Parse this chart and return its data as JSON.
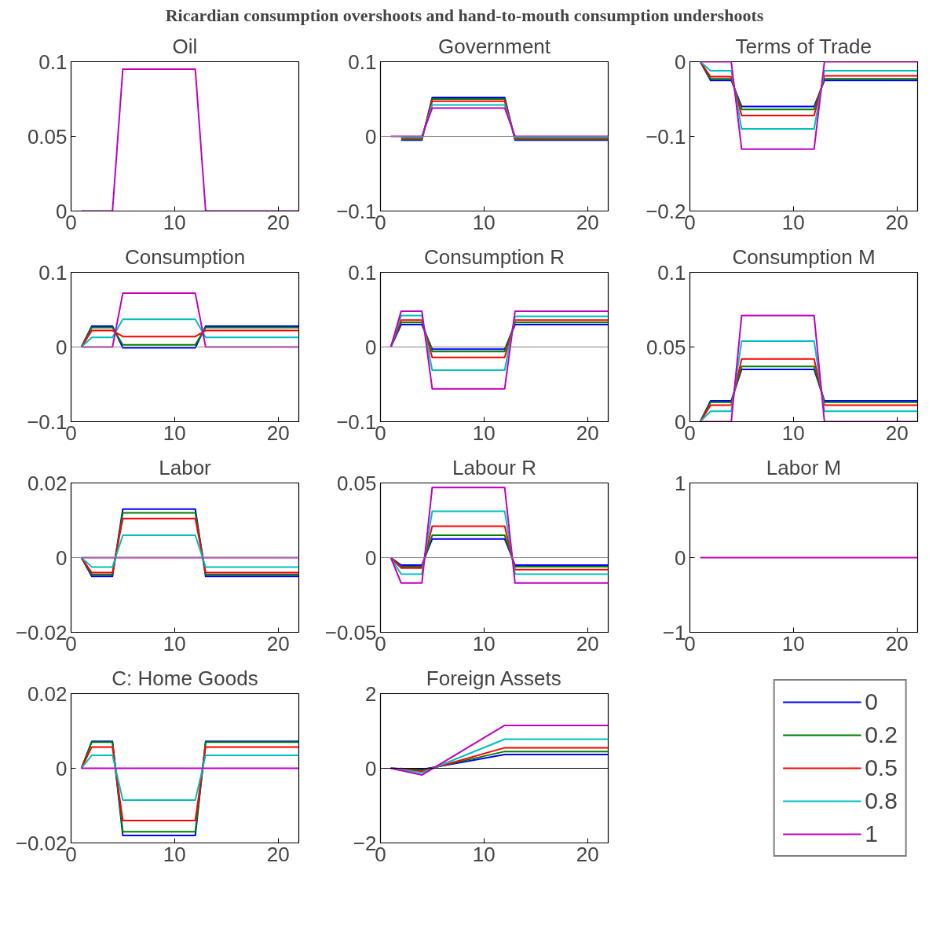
{
  "chart_data": [
    {
      "type": "other",
      "title": "Ricardian consumption overshoots and hand-to-mouth consumption undershoots"
    },
    {
      "type": "line",
      "title": "Oil",
      "x": [
        1,
        2,
        4,
        5,
        12,
        13,
        22
      ],
      "xlim": [
        0,
        22
      ],
      "xticks": [
        0,
        10,
        20
      ],
      "ylim": [
        0,
        0.1
      ],
      "yticks": [
        0,
        0.05,
        0.1
      ],
      "series": [
        {
          "color": "#0000ff",
          "values": [
            null,
            null,
            null,
            null,
            null,
            null,
            null
          ]
        },
        {
          "color": "#008000",
          "values": [
            null,
            null,
            null,
            null,
            null,
            null,
            null
          ]
        },
        {
          "color": "#ff0000",
          "values": [
            null,
            null,
            null,
            null,
            null,
            null,
            null
          ]
        },
        {
          "color": "#00bfbf",
          "values": [
            null,
            null,
            null,
            null,
            null,
            null,
            null
          ]
        },
        {
          "color": "#bf00bf",
          "values": [
            0,
            0,
            0,
            0.095,
            0.095,
            0,
            0
          ]
        }
      ]
    },
    {
      "type": "line",
      "title": "Government",
      "x": [
        1,
        2,
        4,
        5,
        12,
        13,
        22
      ],
      "xlim": [
        0,
        22
      ],
      "xticks": [
        0,
        10,
        20
      ],
      "ylim": [
        -0.1,
        0.1
      ],
      "yticks": [
        {
          "value": -0.1,
          "label": "−0.1"
        },
        0,
        0.1
      ],
      "ref_lines": [
        {
          "axis": "y",
          "value": 0,
          "color": "#808080"
        }
      ],
      "series": [
        {
          "color": "#0000ff",
          "values": [
            null,
            -0.005,
            -0.005,
            0.052,
            0.052,
            -0.005,
            -0.005
          ]
        },
        {
          "color": "#008000",
          "values": [
            null,
            -0.004,
            -0.004,
            0.05,
            0.05,
            -0.004,
            -0.004
          ]
        },
        {
          "color": "#ff0000",
          "values": [
            null,
            -0.003,
            -0.003,
            0.047,
            0.047,
            -0.003,
            -0.003
          ]
        },
        {
          "color": "#00bfbf",
          "values": [
            null,
            -0.0015,
            -0.0015,
            0.042,
            0.042,
            -0.0015,
            -0.0015
          ]
        },
        {
          "color": "#bf00bf",
          "values": [
            0,
            0,
            0,
            0.038,
            0.038,
            0,
            0
          ]
        }
      ]
    },
    {
      "type": "line",
      "title": "Terms of Trade",
      "x": [
        1,
        2,
        4,
        5,
        12,
        13,
        22
      ],
      "xlim": [
        0,
        22
      ],
      "xticks": [
        0,
        10,
        20
      ],
      "ylim": [
        -0.2,
        0
      ],
      "yticks": [
        {
          "value": -0.2,
          "label": "−0.2"
        },
        {
          "value": -0.1,
          "label": "−0.1"
        },
        0
      ],
      "series": [
        {
          "color": "#0000ff",
          "values": [
            0,
            -0.025,
            -0.025,
            -0.06,
            -0.06,
            -0.025,
            -0.025
          ]
        },
        {
          "color": "#008000",
          "values": [
            0,
            -0.023,
            -0.023,
            -0.064,
            -0.064,
            -0.023,
            -0.023
          ]
        },
        {
          "color": "#ff0000",
          "values": [
            0,
            -0.02,
            -0.02,
            -0.072,
            -0.072,
            -0.019,
            -0.019
          ]
        },
        {
          "color": "#00bfbf",
          "values": [
            0,
            -0.012,
            -0.012,
            -0.09,
            -0.09,
            -0.012,
            -0.012
          ]
        },
        {
          "color": "#bf00bf",
          "values": [
            0,
            0,
            0,
            -0.117,
            -0.117,
            0,
            0
          ]
        }
      ]
    },
    {
      "type": "line",
      "title": "Consumption",
      "x": [
        1,
        2,
        4,
        5,
        12,
        13,
        22
      ],
      "xlim": [
        0,
        22
      ],
      "xticks": [
        0,
        10,
        20
      ],
      "ylim": [
        -0.1,
        0.1
      ],
      "yticks": [
        {
          "value": -0.1,
          "label": "−0.1"
        },
        0,
        0.1
      ],
      "ref_lines": [
        {
          "axis": "y",
          "value": 0,
          "color": "#808080"
        }
      ],
      "series": [
        {
          "color": "#0000ff",
          "values": [
            0,
            0.028,
            0.028,
            -0.001,
            -0.001,
            0.028,
            0.028
          ]
        },
        {
          "color": "#008000",
          "values": [
            0,
            0.026,
            0.026,
            0.003,
            0.003,
            0.026,
            0.026
          ]
        },
        {
          "color": "#ff0000",
          "values": [
            0,
            0.022,
            0.022,
            0.014,
            0.014,
            0.022,
            0.022
          ]
        },
        {
          "color": "#00bfbf",
          "values": [
            0,
            0.013,
            0.013,
            0.037,
            0.037,
            0.013,
            0.013
          ]
        },
        {
          "color": "#bf00bf",
          "values": [
            0,
            0,
            0,
            0.072,
            0.072,
            0,
            0
          ]
        }
      ]
    },
    {
      "type": "line",
      "title": "Consumption R",
      "x": [
        1,
        2,
        4,
        5,
        12,
        13,
        22
      ],
      "xlim": [
        0,
        22
      ],
      "xticks": [
        0,
        10,
        20
      ],
      "ylim": [
        -0.1,
        0.1
      ],
      "yticks": [
        {
          "value": -0.1,
          "label": "−0.1"
        },
        0,
        0.1
      ],
      "ref_lines": [
        {
          "axis": "y",
          "value": 0,
          "color": "#808080"
        }
      ],
      "series": [
        {
          "color": "#0000ff",
          "values": [
            0,
            0.03,
            0.03,
            -0.003,
            -0.003,
            0.03,
            0.03
          ]
        },
        {
          "color": "#008000",
          "values": [
            0,
            0.033,
            0.033,
            -0.006,
            -0.006,
            0.033,
            0.033
          ]
        },
        {
          "color": "#ff0000",
          "values": [
            0,
            0.036,
            0.036,
            -0.014,
            -0.014,
            0.036,
            0.036
          ]
        },
        {
          "color": "#00bfbf",
          "values": [
            0,
            0.042,
            0.042,
            -0.031,
            -0.031,
            0.041,
            0.041
          ]
        },
        {
          "color": "#bf00bf",
          "values": [
            0,
            0.048,
            0.048,
            -0.056,
            -0.056,
            0.048,
            0.048
          ]
        }
      ]
    },
    {
      "type": "line",
      "title": "Consumption M",
      "x": [
        1,
        2,
        4,
        5,
        12,
        13,
        22
      ],
      "xlim": [
        0,
        22
      ],
      "xticks": [
        0,
        10,
        20
      ],
      "ylim": [
        0,
        0.1
      ],
      "yticks": [
        0,
        0.05,
        0.1
      ],
      "series": [
        {
          "color": "#0000ff",
          "values": [
            0,
            0.014,
            0.014,
            0.035,
            0.035,
            0.014,
            0.014
          ]
        },
        {
          "color": "#008000",
          "values": [
            0,
            0.013,
            0.013,
            0.037,
            0.037,
            0.013,
            0.013
          ]
        },
        {
          "color": "#ff0000",
          "values": [
            0,
            0.011,
            0.011,
            0.042,
            0.042,
            0.011,
            0.011
          ]
        },
        {
          "color": "#00bfbf",
          "values": [
            0,
            0.007,
            0.007,
            0.054,
            0.054,
            0.007,
            0.007
          ]
        },
        {
          "color": "#bf00bf",
          "values": [
            0,
            0,
            0,
            0.071,
            0.071,
            0,
            0
          ]
        }
      ]
    },
    {
      "type": "line",
      "title": "Labor",
      "x": [
        1,
        2,
        4,
        5,
        12,
        13,
        22
      ],
      "xlim": [
        0,
        22
      ],
      "xticks": [
        0,
        10,
        20
      ],
      "ylim": [
        -0.02,
        0.02
      ],
      "yticks": [
        {
          "value": -0.02,
          "label": "−0.02"
        },
        0,
        0.02
      ],
      "ref_lines": [
        {
          "axis": "y",
          "value": 0,
          "color": "#808080"
        }
      ],
      "series": [
        {
          "color": "#0000ff",
          "values": [
            0,
            -0.005,
            -0.005,
            0.013,
            0.013,
            -0.005,
            -0.005
          ]
        },
        {
          "color": "#008000",
          "values": [
            0,
            -0.0045,
            -0.0045,
            0.012,
            0.012,
            -0.0045,
            -0.0045
          ]
        },
        {
          "color": "#ff0000",
          "values": [
            0,
            -0.004,
            -0.004,
            0.0105,
            0.0105,
            -0.004,
            -0.004
          ]
        },
        {
          "color": "#00bfbf",
          "values": [
            0,
            -0.0025,
            -0.0025,
            0.006,
            0.006,
            -0.0025,
            -0.0025
          ]
        },
        {
          "color": "#bf00bf",
          "values": [
            0,
            0,
            0,
            0,
            0,
            0,
            0
          ]
        }
      ]
    },
    {
      "type": "line",
      "title": "Labour R",
      "x": [
        1,
        2,
        4,
        5,
        12,
        13,
        22
      ],
      "xlim": [
        0,
        22
      ],
      "xticks": [
        0,
        10,
        20
      ],
      "ylim": [
        -0.05,
        0.05
      ],
      "yticks": [
        {
          "value": -0.05,
          "label": "−0.05"
        },
        0,
        0.05
      ],
      "ref_lines": [
        {
          "axis": "y",
          "value": 0,
          "color": "#808080"
        }
      ],
      "series": [
        {
          "color": "#0000ff",
          "values": [
            0,
            -0.005,
            -0.005,
            0.0125,
            0.0125,
            -0.005,
            -0.005
          ]
        },
        {
          "color": "#008000",
          "values": [
            0,
            -0.006,
            -0.006,
            0.015,
            0.015,
            -0.006,
            -0.006
          ]
        },
        {
          "color": "#ff0000",
          "values": [
            0,
            -0.007,
            -0.007,
            0.021,
            0.021,
            -0.008,
            -0.008
          ]
        },
        {
          "color": "#00bfbf",
          "values": [
            0,
            -0.011,
            -0.011,
            0.031,
            0.031,
            -0.011,
            -0.011
          ]
        },
        {
          "color": "#bf00bf",
          "values": [
            0,
            -0.017,
            -0.017,
            0.047,
            0.047,
            -0.017,
            -0.017
          ]
        }
      ]
    },
    {
      "type": "line",
      "title": "Labor M",
      "x": [
        1,
        22
      ],
      "xlim": [
        0,
        22
      ],
      "xticks": [
        0,
        10,
        20
      ],
      "ylim": [
        -1,
        1
      ],
      "yticks": [
        {
          "value": -1,
          "label": "−1"
        },
        0,
        1
      ],
      "series": [
        {
          "color": "#0000ff",
          "values": [
            null,
            null
          ]
        },
        {
          "color": "#008000",
          "values": [
            null,
            null
          ]
        },
        {
          "color": "#ff0000",
          "values": [
            null,
            null
          ]
        },
        {
          "color": "#00bfbf",
          "values": [
            null,
            null
          ]
        },
        {
          "color": "#bf00bf",
          "values": [
            0,
            0
          ]
        }
      ]
    },
    {
      "type": "line",
      "title": "C: Home Goods",
      "x": [
        1,
        2,
        4,
        5,
        12,
        13,
        22
      ],
      "xlim": [
        0,
        22
      ],
      "xticks": [
        0,
        10,
        20
      ],
      "ylim": [
        -0.02,
        0.02
      ],
      "yticks": [
        {
          "value": -0.02,
          "label": "−0.02"
        },
        0,
        0.02
      ],
      "series": [
        {
          "color": "#0000ff",
          "values": [
            0,
            0.0072,
            0.0072,
            -0.018,
            -0.018,
            0.0072,
            0.0072
          ]
        },
        {
          "color": "#008000",
          "values": [
            0,
            0.007,
            0.007,
            -0.017,
            -0.017,
            0.007,
            0.007
          ]
        },
        {
          "color": "#ff0000",
          "values": [
            0,
            0.0057,
            0.0057,
            -0.014,
            -0.014,
            0.0057,
            0.0057
          ]
        },
        {
          "color": "#00bfbf",
          "values": [
            0,
            0.0035,
            0.0035,
            -0.0085,
            -0.0085,
            0.0035,
            0.0035
          ]
        },
        {
          "color": "#bf00bf",
          "values": [
            0,
            0,
            0,
            0,
            0,
            0,
            0
          ]
        }
      ]
    },
    {
      "type": "line",
      "title": "Foreign Assets",
      "x": [
        1,
        4,
        12,
        22
      ],
      "xlim": [
        0,
        22
      ],
      "xticks": [
        0,
        10,
        20
      ],
      "ylim": [
        -2,
        2
      ],
      "yticks": [
        {
          "value": -2,
          "label": "−2"
        },
        0,
        2
      ],
      "ref_lines": [
        {
          "axis": "y",
          "value": 0,
          "color": "#000000"
        }
      ],
      "legend": "right",
      "series": [
        {
          "name": "0",
          "color": "#0000ff",
          "values": [
            0,
            -0.03,
            0.37,
            0.37
          ]
        },
        {
          "name": "0.2",
          "color": "#008000",
          "values": [
            0,
            -0.05,
            0.45,
            0.45
          ]
        },
        {
          "name": "0.5",
          "color": "#ff0000",
          "values": [
            0,
            -0.08,
            0.55,
            0.55
          ]
        },
        {
          "name": "0.8",
          "color": "#00bfbf",
          "values": [
            0,
            -0.12,
            0.78,
            0.78
          ]
        },
        {
          "name": "1",
          "color": "#bf00bf",
          "values": [
            0,
            -0.18,
            1.15,
            1.15
          ]
        }
      ]
    }
  ]
}
